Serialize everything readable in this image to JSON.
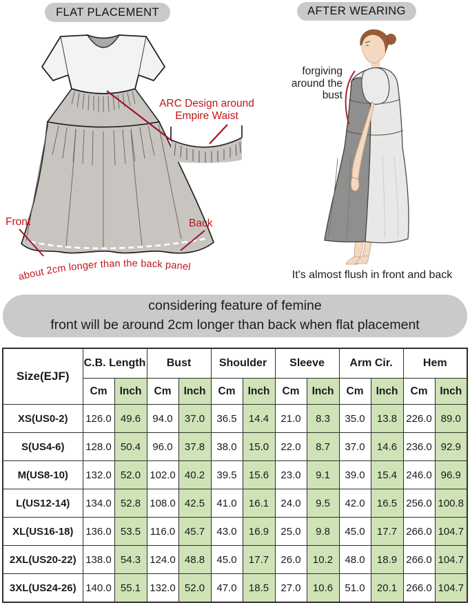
{
  "colors": {
    "red": "#c01418",
    "dark_red": "#a31226",
    "inch_green": "#cfe3b7",
    "pill_gray": "#c9c9c9",
    "banner_gray": "#cacaca"
  },
  "flat_panel": {
    "title": "FLAT PLACEMENT",
    "arc_note": "ARC Design around\nEmpire Waist",
    "front_label": "Front",
    "back_label": "Back",
    "hem_note": "about 2cm longer than the back panel"
  },
  "wearing_panel": {
    "title": "AFTER WEARING",
    "bust_note": "forgiving\naround the\nbust",
    "flush_note": "It's almost flush in front and back"
  },
  "banner": {
    "line1": "considering feature of femine",
    "line2": "front will be around 2cm longer than back when flat placement"
  },
  "size_table": {
    "size_header": "Size(EJF)",
    "unit_cm": "Cm",
    "unit_inch": "Inch",
    "groups": [
      "C.B. Length",
      "Bust",
      "Shoulder",
      "Sleeve",
      "Arm Cir.",
      "Hem"
    ],
    "rows": [
      {
        "size": "XS(US0-2)",
        "values": [
          "126.0",
          "49.6",
          "94.0",
          "37.0",
          "36.5",
          "14.4",
          "21.0",
          "8.3",
          "35.0",
          "13.8",
          "226.0",
          "89.0"
        ]
      },
      {
        "size": "S(US4-6)",
        "values": [
          "128.0",
          "50.4",
          "96.0",
          "37.8",
          "38.0",
          "15.0",
          "22.0",
          "8.7",
          "37.0",
          "14.6",
          "236.0",
          "92.9"
        ]
      },
      {
        "size": "M(US8-10)",
        "values": [
          "132.0",
          "52.0",
          "102.0",
          "40.2",
          "39.5",
          "15.6",
          "23.0",
          "9.1",
          "39.0",
          "15.4",
          "246.0",
          "96.9"
        ]
      },
      {
        "size": "L(US12-14)",
        "values": [
          "134.0",
          "52.8",
          "108.0",
          "42.5",
          "41.0",
          "16.1",
          "24.0",
          "9.5",
          "42.0",
          "16.5",
          "256.0",
          "100.8"
        ]
      },
      {
        "size": "XL(US16-18)",
        "values": [
          "136.0",
          "53.5",
          "116.0",
          "45.7",
          "43.0",
          "16.9",
          "25.0",
          "9.8",
          "45.0",
          "17.7",
          "266.0",
          "104.7"
        ]
      },
      {
        "size": "2XL(US20-22)",
        "values": [
          "138.0",
          "54.3",
          "124.0",
          "48.8",
          "45.0",
          "17.7",
          "26.0",
          "10.2",
          "48.0",
          "18.9",
          "266.0",
          "104.7"
        ]
      },
      {
        "size": "3XL(US24-26)",
        "values": [
          "140.0",
          "55.1",
          "132.0",
          "52.0",
          "47.0",
          "18.5",
          "27.0",
          "10.6",
          "51.0",
          "20.1",
          "266.0",
          "104.7"
        ]
      }
    ]
  }
}
